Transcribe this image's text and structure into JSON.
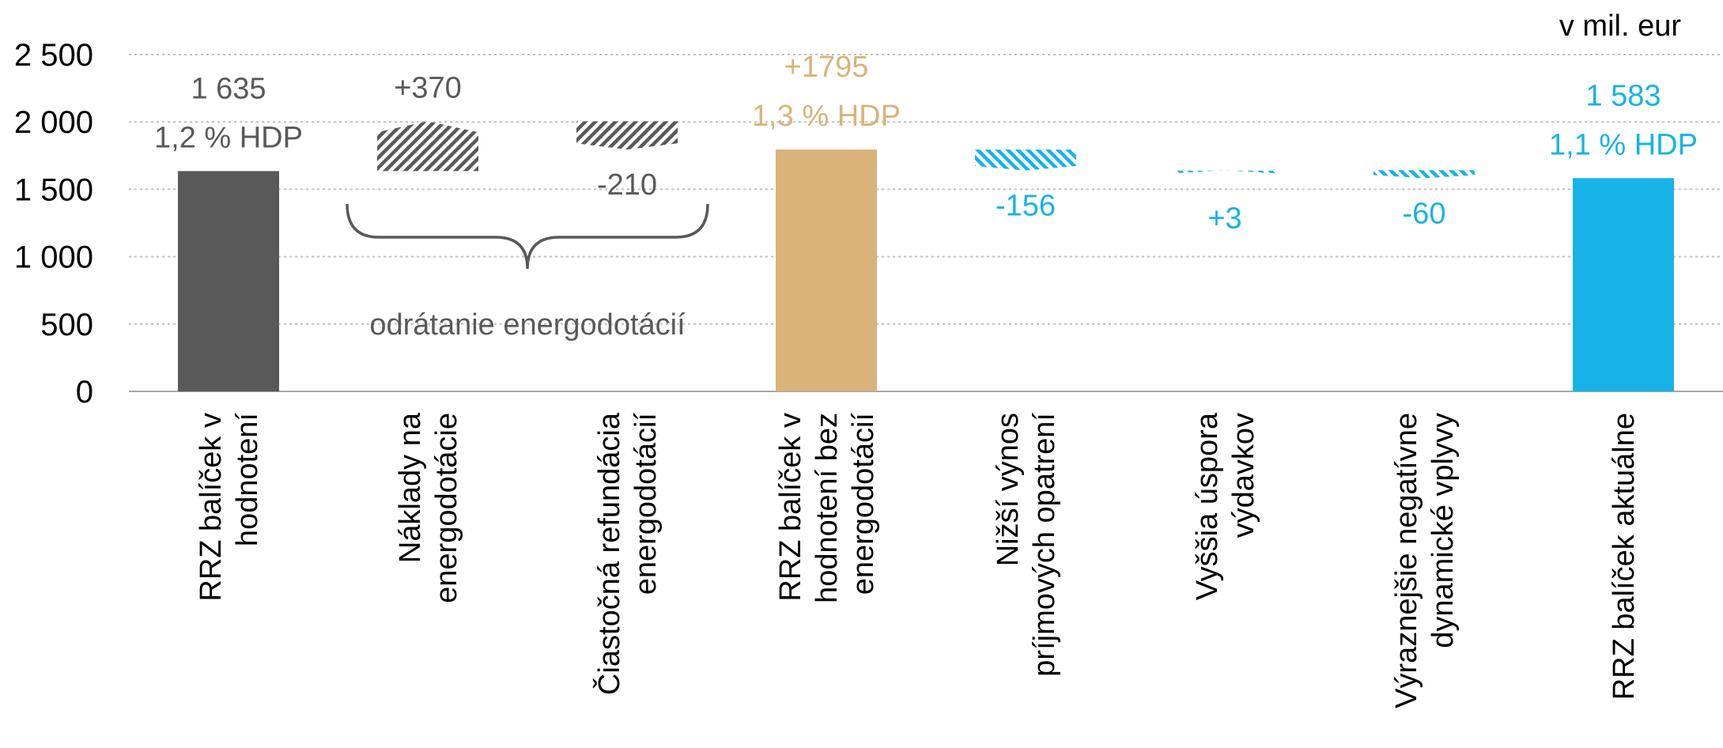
{
  "chart_data": {
    "type": "bar",
    "subtype": "waterfall",
    "unit_label": "v mil. eur",
    "ylim": [
      0,
      2500
    ],
    "yticks": [
      0,
      500,
      1000,
      1500,
      2000,
      2500
    ],
    "ytick_labels": [
      "0",
      "500",
      "1 000",
      "1 500",
      "2 000",
      "2 500"
    ],
    "grid": true,
    "bars": [
      {
        "category": [
          "RRZ balíček v",
          "hodnotení"
        ],
        "kind": "total",
        "start": 0,
        "end": 1635,
        "label": "1 635",
        "sublabel": "1,2 % HDP",
        "color": "#595959"
      },
      {
        "category": [
          "Náklady na",
          "energodotácie"
        ],
        "kind": "delta",
        "start": 1635,
        "end": 2005,
        "label": "+370",
        "color": "#595959"
      },
      {
        "category": [
          "Čiastočná refundácia",
          "energodotácií"
        ],
        "kind": "delta",
        "start": 2005,
        "end": 1795,
        "label": "-210",
        "color": "#595959"
      },
      {
        "category": [
          "RRZ balíček v",
          "hodnotení bez",
          "energodotácií"
        ],
        "kind": "total",
        "start": 0,
        "end": 1795,
        "label": "+1795",
        "sublabel": "1,3 % HDP",
        "color": "#D9B37A"
      },
      {
        "category": [
          "Nižší výnos",
          "príjmových opatrení"
        ],
        "kind": "delta",
        "start": 1795,
        "end": 1639,
        "label": "-156",
        "color": "#17B3E6"
      },
      {
        "category": [
          "Vyššia úspora",
          "výdavkov"
        ],
        "kind": "delta",
        "start": 1639,
        "end": 1642,
        "label": "+3",
        "color": "#17B3E6"
      },
      {
        "category": [
          "Výraznejšie negatívne",
          "dynamické vplyvy"
        ],
        "kind": "delta",
        "start": 1642,
        "end": 1582,
        "label": "-60",
        "color": "#17B3E6"
      },
      {
        "category": [
          "RRZ balíček aktuálne"
        ],
        "kind": "total",
        "start": 0,
        "end": 1583,
        "label": "1 583",
        "sublabel": "1,1 % HDP",
        "color": "#17B3E6"
      }
    ],
    "annotations": [
      {
        "text": "odrátanie energodotácií",
        "spans": [
          1,
          2
        ]
      }
    ]
  }
}
